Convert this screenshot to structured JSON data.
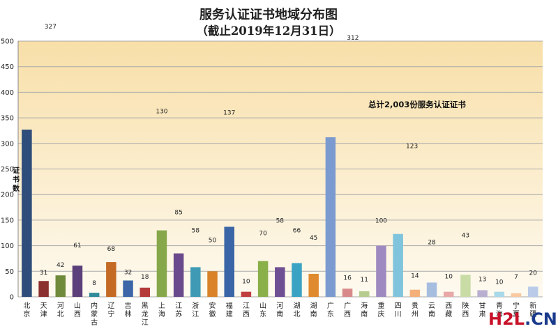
{
  "chart_data": {
    "type": "bar",
    "title": "服务认证证书地域分布图",
    "subtitle": "（截止2019年12月31日）",
    "ylabel": "证书数",
    "annotation": "总计2,003份服务认证证书",
    "ylim": [
      0,
      500
    ],
    "yticks": [
      0,
      50,
      100,
      150,
      200,
      250,
      300,
      350,
      400,
      450,
      500
    ],
    "grid": true,
    "categories": [
      "北京",
      "天津",
      "河北",
      "山西",
      "内蒙古",
      "辽宁",
      "吉林",
      "黑龙江",
      "上海",
      "江苏",
      "浙江",
      "安徽",
      "福建",
      "江西",
      "山东",
      "河南",
      "湖北",
      "湖南",
      "广东",
      "广西",
      "海南",
      "重庆",
      "四川",
      "贵州",
      "云南",
      "西藏",
      "陕西",
      "甘肃",
      "青海",
      "宁夏",
      "新疆"
    ],
    "values": [
      327,
      31,
      42,
      61,
      8,
      68,
      32,
      18,
      130,
      85,
      58,
      50,
      137,
      10,
      70,
      58,
      66,
      45,
      312,
      16,
      11,
      100,
      123,
      14,
      28,
      10,
      43,
      13,
      10,
      7,
      20
    ],
    "colors": [
      "#2f4d7a",
      "#8c2f2f",
      "#6f8a3a",
      "#5b3f7a",
      "#2f8a9a",
      "#c46a24",
      "#3d66a8",
      "#b53a3a",
      "#86a84a",
      "#6a4a8c",
      "#3f9bb5",
      "#d9822a",
      "#3a65a6",
      "#c04040",
      "#8ab04a",
      "#6e4f94",
      "#3aa3c4",
      "#e08a30",
      "#7b9bd0",
      "#d88a8a",
      "#b5cc8e",
      "#9e8ac0",
      "#7fc4dc",
      "#f5b07a",
      "#a6bde0",
      "#e8a8a8",
      "#c9dca6",
      "#b8aed0",
      "#a9d8e8",
      "#f9c8a0",
      "#b9cbe8"
    ]
  },
  "watermark": {
    "text_main": "H2L",
    "text_dot": ".CN",
    "color_main": "#c8122a",
    "color_dot": "#1a3a8c"
  }
}
